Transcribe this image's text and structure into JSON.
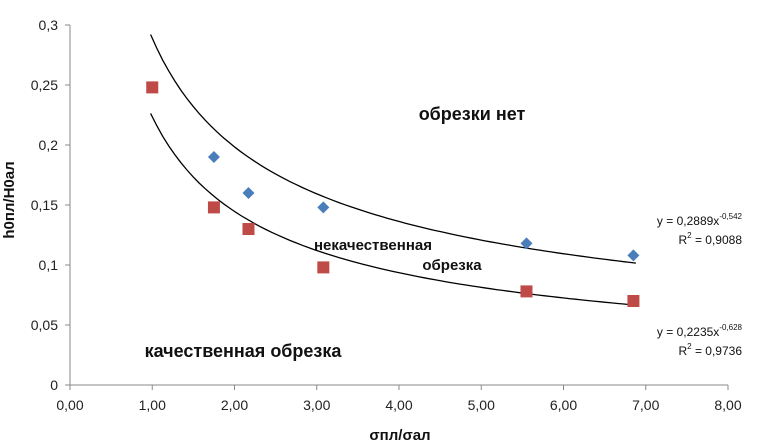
{
  "chart_data": {
    "type": "scatter",
    "xlabel": "σпл/σал",
    "ylabel": "h0пл/H0ал",
    "xlim": [
      0,
      8
    ],
    "ylim": [
      0,
      0.3
    ],
    "grid": false,
    "xticks": [
      "0,00",
      "1,00",
      "2,00",
      "3,00",
      "4,00",
      "5,00",
      "6,00",
      "7,00",
      "8,00"
    ],
    "yticks": [
      "0",
      "0,05",
      "0,1",
      "0,15",
      "0,2",
      "0,25",
      "0,3"
    ],
    "series": [
      {
        "marker": "diamond",
        "color": "#4a7ebb",
        "x": [
          1.75,
          2.17,
          3.08,
          5.55,
          6.85
        ],
        "y": [
          0.19,
          0.16,
          0.148,
          0.118,
          0.108
        ],
        "trendline": {
          "a": 0.2889,
          "b": -0.542,
          "x_range": [
            0.98,
            6.88
          ],
          "eq_prefix": "y = 0,2889x",
          "eq_exp": "-0,542",
          "r2_prefix": "R",
          "r2_sup": "2",
          "r2_value": " = 0,9088"
        }
      },
      {
        "marker": "square",
        "color": "#be4b48",
        "x": [
          1.0,
          1.75,
          2.17,
          3.08,
          5.55,
          6.85
        ],
        "y": [
          0.248,
          0.148,
          0.13,
          0.098,
          0.078,
          0.07
        ],
        "trendline": {
          "a": 0.2235,
          "b": -0.628,
          "x_range": [
            0.98,
            6.88
          ],
          "eq_prefix": "y = 0,2235x",
          "eq_exp": "-0,628",
          "r2_prefix": "R",
          "r2_sup": "2",
          "r2_value": " = 0,9736"
        }
      }
    ],
    "annotations": {
      "region_top": "обрезки нет",
      "region_mid_line1": "некачественная",
      "region_mid_line2": "обрезка",
      "region_bottom": "качественная обрезка"
    }
  }
}
